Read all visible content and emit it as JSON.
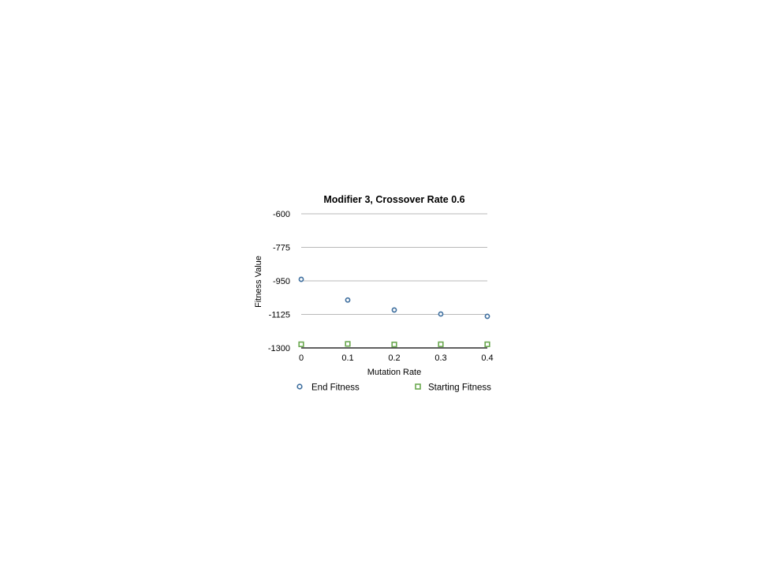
{
  "chart_data": {
    "type": "scatter",
    "title": "Modifier 3, Crossover Rate 0.6",
    "xlabel": "Mutation Rate",
    "ylabel": "Fitness Value",
    "x_ticks": [
      "0",
      "0.1",
      "0.2",
      "0.3",
      "0.4"
    ],
    "y_ticks": [
      "-600",
      "-775",
      "-950",
      "-1125",
      "-1300"
    ],
    "xlim": [
      0,
      0.4
    ],
    "ylim": [
      -1300,
      -600
    ],
    "grid": true,
    "legend_position": "bottom",
    "series": [
      {
        "name": "End Fitness",
        "marker": "circle",
        "color": "#3d6e9e",
        "x": [
          0,
          0.1,
          0.2,
          0.3,
          0.4
        ],
        "y": [
          -942,
          -1050,
          -1102,
          -1123,
          -1135
        ]
      },
      {
        "name": "Starting Fitness",
        "marker": "square",
        "color": "#6aa84f",
        "x": [
          0,
          0.1,
          0.2,
          0.3,
          0.4
        ],
        "y": [
          -1281,
          -1279,
          -1282,
          -1281,
          -1281
        ]
      }
    ]
  }
}
